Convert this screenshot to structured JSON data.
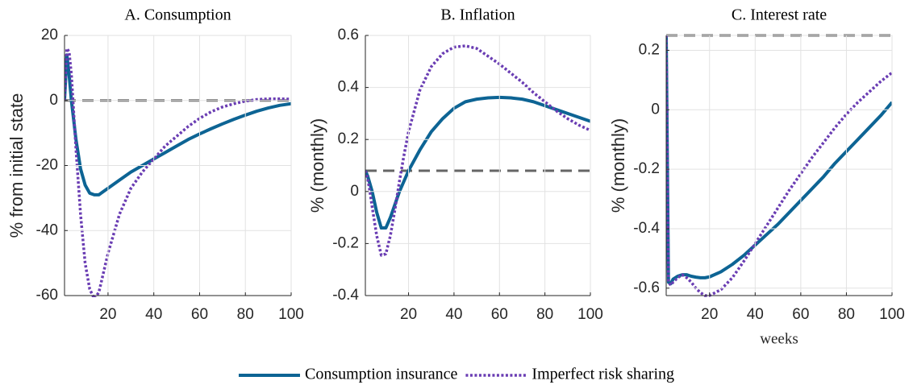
{
  "chart_data": [
    {
      "type": "line",
      "title": "A. Consumption",
      "ylabel": "% from initial state",
      "x": [
        1,
        2,
        3,
        4,
        6,
        8,
        10,
        12,
        14,
        16,
        18,
        20,
        25,
        30,
        35,
        40,
        45,
        50,
        55,
        60,
        65,
        70,
        75,
        80,
        85,
        90,
        95,
        100
      ],
      "series": [
        {
          "name": "Consumption insurance",
          "color": "#0d6494",
          "style": "solid",
          "values": [
            0,
            14,
            8,
            0,
            -12,
            -21,
            -26,
            -28.5,
            -29,
            -29,
            -28,
            -27,
            -24.5,
            -22,
            -20,
            -18,
            -16,
            -14,
            -12,
            -10.3,
            -8.7,
            -7.2,
            -5.8,
            -4.5,
            -3.3,
            -2.3,
            -1.5,
            -1
          ]
        },
        {
          "name": "Imperfect risk sharing",
          "color": "#6a3db3",
          "style": "dotted",
          "values": [
            0,
            16,
            15,
            8,
            -15,
            -35,
            -50,
            -58,
            -61,
            -59,
            -53,
            -47,
            -35,
            -27,
            -22,
            -18,
            -14,
            -11,
            -8,
            -5.5,
            -3.5,
            -2,
            -1,
            -0.2,
            0.3,
            0.5,
            0.5,
            0.4
          ]
        }
      ],
      "reference_line": {
        "value": 0,
        "color": "#666666",
        "style": "dashed"
      },
      "xlim": [
        1,
        100
      ],
      "xticks": [
        20,
        40,
        60,
        80,
        100
      ],
      "ylim": [
        -60,
        20
      ],
      "yticks": [
        -60,
        -40,
        -20,
        0,
        20
      ],
      "grid": true,
      "legend": "bottom"
    },
    {
      "type": "line",
      "title": "B. Inflation",
      "ylabel": "%  (monthly)",
      "x": [
        1,
        2,
        3,
        4,
        6,
        8,
        10,
        12,
        14,
        16,
        18,
        20,
        25,
        30,
        35,
        40,
        45,
        50,
        55,
        60,
        65,
        70,
        75,
        80,
        85,
        90,
        95,
        100
      ],
      "series": [
        {
          "name": "Consumption insurance",
          "color": "#0d6494",
          "style": "solid",
          "values": [
            0.08,
            0.06,
            0.03,
            0.0,
            -0.08,
            -0.14,
            -0.14,
            -0.1,
            -0.05,
            0.0,
            0.04,
            0.08,
            0.16,
            0.23,
            0.28,
            0.32,
            0.345,
            0.355,
            0.36,
            0.362,
            0.36,
            0.355,
            0.345,
            0.33,
            0.315,
            0.3,
            0.285,
            0.27
          ]
        },
        {
          "name": "Imperfect risk sharing",
          "color": "#6a3db3",
          "style": "dotted",
          "values": [
            0.08,
            0.05,
            0.0,
            -0.06,
            -0.17,
            -0.245,
            -0.24,
            -0.17,
            -0.07,
            0.04,
            0.14,
            0.23,
            0.39,
            0.48,
            0.53,
            0.555,
            0.56,
            0.55,
            0.52,
            0.49,
            0.455,
            0.42,
            0.38,
            0.345,
            0.31,
            0.28,
            0.255,
            0.235
          ]
        }
      ],
      "reference_line": {
        "value": 0.08,
        "color": "#666666",
        "style": "dashed"
      },
      "xlim": [
        1,
        100
      ],
      "xticks": [
        20,
        40,
        60,
        80,
        100
      ],
      "ylim": [
        -0.4,
        0.6
      ],
      "yticks": [
        -0.4,
        -0.2,
        0,
        0.2,
        0.4,
        0.6
      ],
      "grid": true
    },
    {
      "type": "line",
      "title": "C. Interest rate",
      "ylabel": "%  (monthly)",
      "xlabel": "weeks",
      "x": [
        1,
        2,
        3,
        4,
        6,
        8,
        10,
        12,
        14,
        16,
        18,
        20,
        25,
        30,
        35,
        40,
        45,
        50,
        55,
        60,
        65,
        70,
        75,
        80,
        85,
        90,
        95,
        100
      ],
      "series": [
        {
          "name": "Consumption insurance",
          "color": "#0d6494",
          "style": "solid",
          "values": [
            0.25,
            -0.58,
            -0.585,
            -0.57,
            -0.56,
            -0.555,
            -0.555,
            -0.56,
            -0.563,
            -0.565,
            -0.565,
            -0.562,
            -0.545,
            -0.52,
            -0.49,
            -0.455,
            -0.42,
            -0.385,
            -0.345,
            -0.305,
            -0.265,
            -0.225,
            -0.18,
            -0.14,
            -0.1,
            -0.06,
            -0.02,
            0.025
          ]
        },
        {
          "name": "Imperfect risk sharing",
          "color": "#6a3db3",
          "style": "dotted",
          "values": [
            0.25,
            -0.58,
            -0.59,
            -0.58,
            -0.565,
            -0.555,
            -0.565,
            -0.58,
            -0.6,
            -0.615,
            -0.625,
            -0.625,
            -0.605,
            -0.565,
            -0.51,
            -0.45,
            -0.39,
            -0.33,
            -0.27,
            -0.215,
            -0.16,
            -0.11,
            -0.06,
            -0.015,
            0.025,
            0.06,
            0.095,
            0.125
          ]
        }
      ],
      "reference_line": {
        "value": 0.25,
        "color": "#666666",
        "style": "dashed"
      },
      "xlim": [
        1,
        100
      ],
      "xticks": [
        20,
        40,
        60,
        80,
        100
      ],
      "ylim": [
        -0.625,
        0.25
      ],
      "yticks": [
        -0.6,
        -0.4,
        -0.2,
        0,
        0.2
      ],
      "grid": true
    }
  ]
}
